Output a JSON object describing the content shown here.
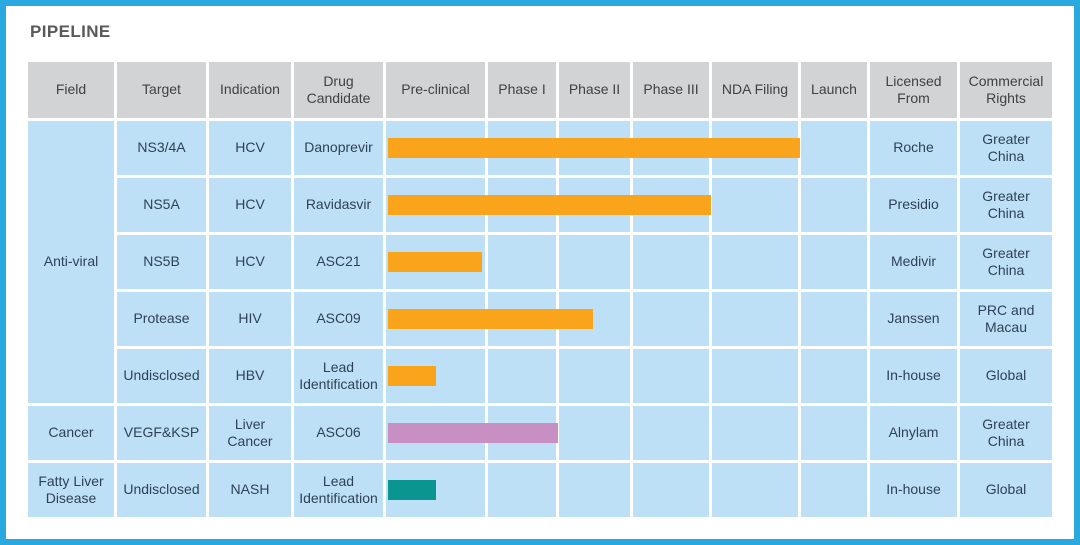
{
  "title": "PIPELINE",
  "colors": {
    "frame_border": "#2AA9E1",
    "title_text": "#58595B",
    "header_bg": "#D2D3D4",
    "header_text": "#3F4142",
    "cell_bg": "#BEE0F6",
    "cell_text": "#2E4156",
    "bar_orange": "#F9A41B",
    "bar_pink": "#C78FC2",
    "bar_teal": "#0B9590"
  },
  "chart_data": {
    "type": "table",
    "title": "PIPELINE",
    "columns": [
      "Field",
      "Target",
      "Indication",
      "Drug Candidate",
      "Pre-clinical",
      "Phase I",
      "Phase II",
      "Phase III",
      "NDA Filing",
      "Launch",
      "Licensed From",
      "Commercial Rights"
    ],
    "phase_columns": [
      "Pre-clinical",
      "Phase I",
      "Phase II",
      "Phase III",
      "NDA Filing",
      "Launch"
    ],
    "field_groups": [
      {
        "label": "Anti-viral",
        "rows": 5
      },
      {
        "label": "Cancer",
        "rows": 1
      },
      {
        "label": "Fatty Liver Disease",
        "rows": 1
      }
    ],
    "rows": [
      {
        "field": "Anti-viral",
        "target": "NS3/4A",
        "indication": "HCV",
        "drug_candidate": "Danoprevir",
        "bar_color": "orange",
        "progress_phases": 5.0,
        "stage_reached": "NDA Filing",
        "licensed_from": "Roche",
        "commercial_rights": "Greater China"
      },
      {
        "field": "Anti-viral",
        "target": "NS5A",
        "indication": "HCV",
        "drug_candidate": "Ravidasvir",
        "bar_color": "orange",
        "progress_phases": 4.0,
        "stage_reached": "Phase III",
        "licensed_from": "Presidio",
        "commercial_rights": "Greater China"
      },
      {
        "field": "Anti-viral",
        "target": "NS5B",
        "indication": "HCV",
        "drug_candidate": "ASC21",
        "bar_color": "orange",
        "progress_phases": 0.95,
        "stage_reached": "Pre-clinical",
        "licensed_from": "Medivir",
        "commercial_rights": "Greater China"
      },
      {
        "field": "Anti-viral",
        "target": "Protease",
        "indication": "HIV",
        "drug_candidate": "ASC09",
        "bar_color": "orange",
        "progress_phases": 2.45,
        "stage_reached": "Phase II",
        "licensed_from": "Janssen",
        "commercial_rights": "PRC and Macau"
      },
      {
        "field": "Anti-viral",
        "target": "Undisclosed",
        "indication": "HBV",
        "drug_candidate": "Lead Identification",
        "bar_color": "orange",
        "progress_phases": 0.48,
        "stage_reached": "Pre-clinical",
        "licensed_from": "In-house",
        "commercial_rights": "Global"
      },
      {
        "field": "Cancer",
        "target": "VEGF&KSP",
        "indication": "Liver Cancer",
        "drug_candidate": "ASC06",
        "bar_color": "pink",
        "progress_phases": 2.0,
        "stage_reached": "Phase I",
        "licensed_from": "Alnylam",
        "commercial_rights": "Greater China"
      },
      {
        "field": "Fatty Liver Disease",
        "target": "Undisclosed",
        "indication": "NASH",
        "drug_candidate": "Lead Identification",
        "bar_color": "teal",
        "progress_phases": 0.48,
        "stage_reached": "Pre-clinical",
        "licensed_from": "In-house",
        "commercial_rights": "Global"
      }
    ]
  }
}
